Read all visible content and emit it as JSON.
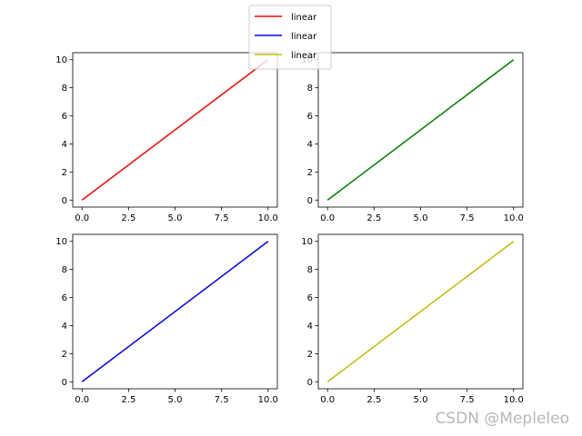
{
  "chart_data": [
    {
      "type": "line",
      "xlim": [
        -0.5,
        10.5
      ],
      "ylim": [
        -0.5,
        10.5
      ],
      "xticks": [
        0,
        2.5,
        5,
        7.5,
        10
      ],
      "xtick_labels": [
        "0.0",
        "2.5",
        "5.0",
        "7.5",
        "10.0"
      ],
      "yticks": [
        0,
        2,
        4,
        6,
        8,
        10
      ],
      "ytick_labels": [
        "0",
        "2",
        "4",
        "6",
        "8",
        "10"
      ],
      "series": [
        {
          "color": "#ff0000",
          "x": [
            0,
            10
          ],
          "y": [
            0,
            10
          ]
        }
      ]
    },
    {
      "type": "line",
      "xlim": [
        -0.5,
        10.5
      ],
      "ylim": [
        -0.5,
        10.5
      ],
      "xticks": [
        0,
        2.5,
        5,
        7.5,
        10
      ],
      "xtick_labels": [
        "0.0",
        "2.5",
        "5.0",
        "7.5",
        "10.0"
      ],
      "yticks": [
        0,
        2,
        4,
        6,
        8,
        10
      ],
      "ytick_labels": [
        "0",
        "2",
        "4",
        "6",
        "8",
        "10"
      ],
      "series": [
        {
          "color": "#008000",
          "x": [
            0,
            10
          ],
          "y": [
            0,
            10
          ]
        }
      ]
    },
    {
      "type": "line",
      "xlim": [
        -0.5,
        10.5
      ],
      "ylim": [
        -0.5,
        10.5
      ],
      "xticks": [
        0,
        2.5,
        5,
        7.5,
        10
      ],
      "xtick_labels": [
        "0.0",
        "2.5",
        "5.0",
        "7.5",
        "10.0"
      ],
      "yticks": [
        0,
        2,
        4,
        6,
        8,
        10
      ],
      "ytick_labels": [
        "0",
        "2",
        "4",
        "6",
        "8",
        "10"
      ],
      "series": [
        {
          "color": "#0000ff",
          "x": [
            0,
            10
          ],
          "y": [
            0,
            10
          ]
        }
      ]
    },
    {
      "type": "line",
      "xlim": [
        -0.5,
        10.5
      ],
      "ylim": [
        -0.5,
        10.5
      ],
      "xticks": [
        0,
        2.5,
        5,
        7.5,
        10
      ],
      "xtick_labels": [
        "0.0",
        "2.5",
        "5.0",
        "7.5",
        "10.0"
      ],
      "yticks": [
        0,
        2,
        4,
        6,
        8,
        10
      ],
      "ytick_labels": [
        "0",
        "2",
        "4",
        "6",
        "8",
        "10"
      ],
      "series": [
        {
          "color": "#bfbf00",
          "x": [
            0,
            10
          ],
          "y": [
            0,
            10
          ]
        }
      ]
    }
  ],
  "legend": {
    "placement": "top-center",
    "entries": [
      {
        "label": "linear",
        "color": "#ff0000"
      },
      {
        "label": "linear",
        "color": "#0000ff"
      },
      {
        "label": "linear",
        "color": "#bfbf00"
      }
    ]
  },
  "watermark": "CSDN @Mepleleo"
}
